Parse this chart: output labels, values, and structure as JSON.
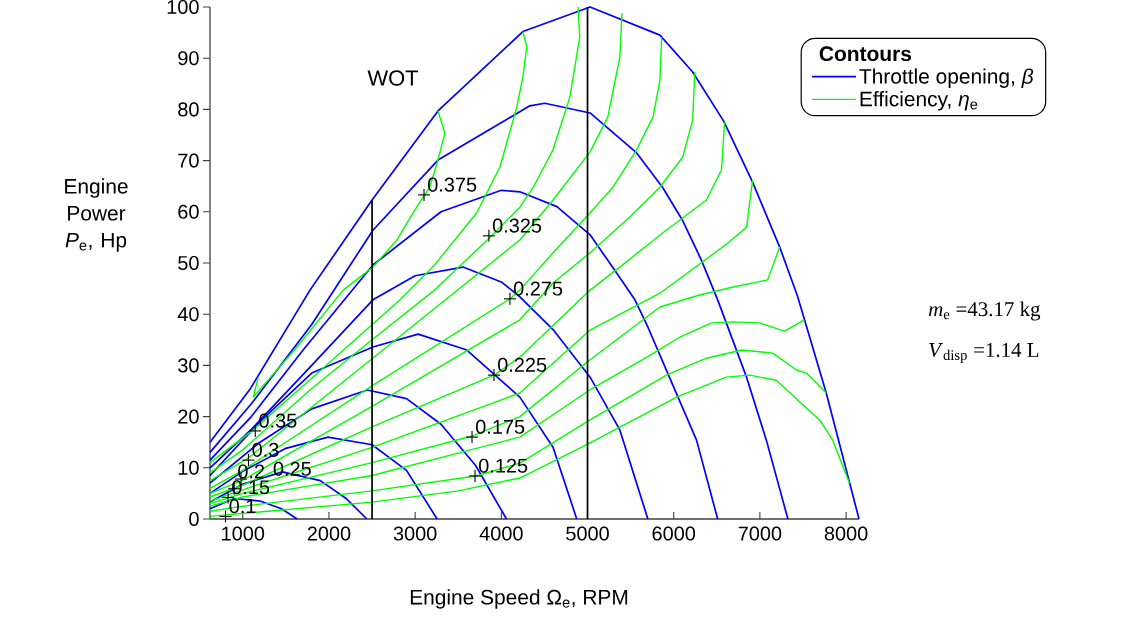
{
  "chart_data": {
    "type": "line",
    "xlabel": "Engine Speed Ω$_{e}$, RPM",
    "ylabel": "Engine Power *P*$_{e}$, Hp",
    "legend_title": "Contours",
    "legend": "top right",
    "xlim": [
      620,
      8150
    ],
    "ylim": [
      0,
      100
    ],
    "xticks": [
      1000,
      2000,
      3000,
      4000,
      5000,
      6000,
      7000,
      8000
    ],
    "yticks": [
      0,
      10,
      20,
      30,
      40,
      50,
      60,
      70,
      80,
      90,
      100
    ],
    "series": [
      {
        "name": "Throttle opening, *β*",
        "color": "#0000ff",
        "x": [
          620,
          1090,
          1780,
          2500,
          3265,
          4250,
          5030,
          5840,
          6220,
          6580,
          6915,
          7230,
          7435,
          7770,
          8150
        ],
        "values": [
          15,
          25.5,
          44.7,
          62.3,
          79.7,
          95.2,
          100,
          94.5,
          87.3,
          77.7,
          65.8,
          53.1,
          43.6,
          24.6,
          0
        ]
      },
      {
        "color": "#0000ff",
        "x": [
          620,
          1100,
          1800,
          2510,
          3265,
          4330,
          4505,
          5030,
          5570,
          5870,
          6100,
          6320,
          6510,
          6610,
          6845,
          7075,
          7325
        ],
        "values": [
          13,
          22.5,
          38,
          56.4,
          70.1,
          80.7,
          81.2,
          79.3,
          71.5,
          64.8,
          58.4,
          50.6,
          42.8,
          38.3,
          27.7,
          15.4,
          0
        ]
      },
      {
        "color": "#0000ff",
        "x": [
          620,
          1100,
          1700,
          2510,
          3300,
          4000,
          4215,
          4645,
          5030,
          5340,
          5550,
          5700,
          5930,
          6265,
          6510
        ],
        "values": [
          11.5,
          20,
          33,
          49.6,
          60,
          64.2,
          63.9,
          61,
          55.5,
          48,
          42.8,
          37.5,
          28.5,
          15.4,
          0
        ]
      },
      {
        "color": "#0000ff",
        "x": [
          620,
          1100,
          1800,
          2510,
          3000,
          3555,
          4000,
          4215,
          4600,
          5030,
          5375,
          5700
        ],
        "values": [
          10,
          17.5,
          30,
          42.8,
          47.5,
          49.2,
          46.3,
          43.4,
          37,
          27.7,
          17.4,
          0
        ]
      },
      {
        "color": "#0000ff",
        "x": [
          620,
          1200,
          1800,
          2510,
          3035,
          3600,
          4215,
          4600,
          4875
        ],
        "values": [
          8.5,
          19,
          28.5,
          33.6,
          36.1,
          33,
          23.8,
          14,
          0
        ]
      },
      {
        "color": "#0000ff",
        "x": [
          620,
          1200,
          1800,
          2445,
          2900,
          3300,
          3700,
          4060
        ],
        "values": [
          7,
          15,
          21.5,
          25.2,
          23.5,
          18.5,
          10.5,
          0
        ]
      },
      {
        "color": "#0000ff",
        "x": [
          620,
          1000,
          1500,
          1990,
          2500,
          2900,
          3255
        ],
        "values": [
          5,
          9.3,
          13.8,
          16,
          14.5,
          9.5,
          0
        ]
      },
      {
        "color": "#0000ff",
        "x": [
          620,
          1000,
          1460,
          1900,
          2200,
          2440
        ],
        "values": [
          3.3,
          6.8,
          9.2,
          7.5,
          4,
          0
        ]
      },
      {
        "color": "#0000ff",
        "x": [
          620,
          900,
          1200,
          1450,
          1630
        ],
        "values": [
          2,
          4,
          3.5,
          2,
          0
        ]
      },
      {
        "name": "Efficiency, *η*$_{e}$",
        "color": "#00ff00",
        "x": [
          1180,
          1122,
          1600,
          2165,
          2510,
          2790,
          2975,
          3170,
          3265,
          3345,
          3265
        ],
        "values": [
          27.7,
          23.8,
          33,
          44.7,
          49.2,
          54.5,
          59.8,
          64.8,
          70.1,
          75.4,
          79.7
        ]
      },
      {
        "color": "#00ff00",
        "x": [
          620,
          1122,
          1800,
          2825,
          3205,
          3715,
          3985,
          4180,
          4250,
          4295,
          4250
        ],
        "values": [
          11,
          17.4,
          27.5,
          42.8,
          49.2,
          59.8,
          68.8,
          80.5,
          86.3,
          92.2,
          95.2
        ]
      },
      {
        "color": "#00ff00",
        "x": [
          620,
          1000,
          1800,
          2500,
          3210,
          3856,
          4215,
          4370,
          4600,
          4795,
          4910,
          4890
        ],
        "values": [
          9,
          13.5,
          25.5,
          35,
          44.5,
          54.8,
          60.9,
          64.8,
          72.1,
          82.4,
          94.1,
          100
        ]
      },
      {
        "color": "#00ff00",
        "x": [
          620,
          1064,
          2500,
          4215,
          4600,
          5030,
          5235,
          5375,
          5400
        ],
        "values": [
          7.5,
          11.9,
          31.3,
          54.5,
          62.3,
          71.7,
          78.5,
          90.2,
          98.8
        ]
      },
      {
        "color": "#00ff00",
        "x": [
          620,
          1000,
          2500,
          4100,
          4215,
          4600,
          5030,
          5295,
          5570,
          5760,
          5840,
          5860
        ],
        "values": [
          6,
          9.5,
          26,
          43,
          44.7,
          52,
          59.8,
          64.8,
          72.1,
          78.5,
          85.7,
          94.1
        ]
      },
      {
        "color": "#00ff00",
        "x": [
          620,
          1000,
          2500,
          4215,
          4600,
          5030,
          5490,
          5840,
          6105,
          6220,
          6245
        ],
        "values": [
          5,
          7.6,
          22,
          38.9,
          46.1,
          52,
          59,
          64.8,
          70.7,
          77.9,
          87.3
        ]
      },
      {
        "color": "#00ff00",
        "x": [
          620,
          1000,
          2500,
          3915,
          4215,
          5030,
          5375,
          5875,
          6380,
          6555,
          6590
        ],
        "values": [
          4.3,
          6.6,
          18,
          28.1,
          31.6,
          44.7,
          49.2,
          55.9,
          62.3,
          68.2,
          77.5
        ]
      },
      {
        "color": "#00ff00",
        "x": [
          620,
          1000,
          2500,
          4215,
          5030,
          5840,
          6630,
          6845,
          6915
        ],
        "values": [
          3.5,
          5.7,
          14,
          24.6,
          36.9,
          44.1,
          53.9,
          57,
          66.2
        ]
      },
      {
        "color": "#00ff00",
        "x": [
          620,
          1000,
          2500,
          3660,
          4215,
          5030,
          5840,
          6310,
          6690,
          7090,
          7230
        ],
        "values": [
          3,
          5,
          11,
          16.2,
          20,
          31.1,
          41.4,
          43.8,
          45.3,
          46.7,
          53.1
        ]
      },
      {
        "color": "#00ff00",
        "x": [
          620,
          1000,
          2500,
          4215,
          5025,
          5690,
          6070,
          6440,
          6685,
          6997,
          7286,
          7518
        ],
        "values": [
          2.5,
          4.3,
          8.5,
          16,
          25.2,
          31.6,
          35.5,
          38.3,
          38.5,
          38.3,
          36.7,
          38.9
        ]
      },
      {
        "color": "#00ff00",
        "x": [
          620,
          1000,
          2500,
          3705,
          4215,
          5025,
          5915,
          6380,
          6790,
          7150,
          7425,
          7540,
          7770
        ],
        "values": [
          1.5,
          2.5,
          5.5,
          8.4,
          10.9,
          19.3,
          28.1,
          31.4,
          33,
          32.4,
          29.1,
          28.5,
          24.6
        ]
      },
      {
        "color": "#00ff00",
        "x": [
          620,
          810,
          2500,
          3500,
          4215,
          5025,
          6035,
          6610,
          6880,
          7190,
          7695,
          7845,
          8040
        ],
        "values": [
          0.5,
          0.8,
          3.3,
          5.5,
          8,
          14.8,
          23.8,
          27.7,
          28.1,
          27.1,
          19.3,
          15.4,
          7
        ]
      },
      {
        "color": "#000000",
        "x": [
          2500,
          2500
        ],
        "values": [
          0,
          62.3
        ]
      }
    ],
    "ref_lines": [
      {
        "axis": "x",
        "value": 5000,
        "color": "#000000"
      }
    ],
    "annotations": [
      "WOT",
      "*m*$_{e}$ =43.17 kg",
      "*V*$_{disp}$ =1.14 L",
      {
        "text": "0.1",
        "x": 800,
        "y": 0.5
      },
      {
        "text": "0.15",
        "x": 830,
        "y": 4.2
      },
      {
        "text": "0.2",
        "x": 900,
        "y": 5.9
      },
      {
        "text": "0.25",
        "x": 980,
        "y": 7.8
      },
      {
        "text": "0.3",
        "x": 1066,
        "y": 11.5
      },
      {
        "text": "0.35",
        "x": 1145,
        "y": 17.2
      },
      {
        "text": "0.375",
        "x": 3103,
        "y": 63.3
      },
      {
        "text": "0.325",
        "x": 3856,
        "y": 55.3
      },
      {
        "text": "0.275",
        "x": 4100,
        "y": 43
      },
      {
        "text": "0.225",
        "x": 3915,
        "y": 28.1
      },
      {
        "text": "0.175",
        "x": 3660,
        "y": 16
      },
      {
        "text": "0.125",
        "x": 3695,
        "y": 8.4
      }
    ]
  }
}
